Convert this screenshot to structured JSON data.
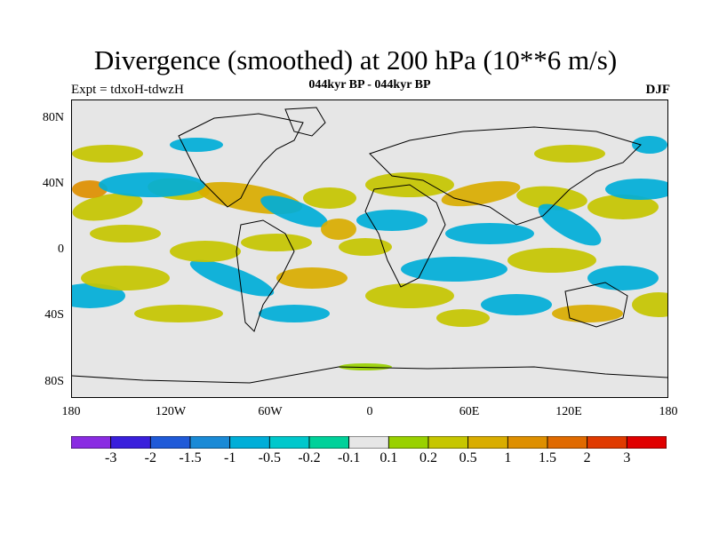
{
  "title": "Divergence (smoothed) at 200 hPa (10**6 m/s)",
  "subtitle": "044kyr BP - 044kyr BP",
  "experiment": "Expt = tdxoH-tdwzH",
  "season": "DJF",
  "latitude_ticks": [
    "80N",
    "40N",
    "0",
    "40S",
    "80S"
  ],
  "longitude_ticks": [
    "180",
    "120W",
    "60W",
    "0",
    "60E",
    "120E",
    "180"
  ],
  "colorbar": {
    "labels": [
      "-3",
      "-2",
      "-1.5",
      "-1",
      "-0.5",
      "-0.2",
      "-0.1",
      "0.1",
      "0.2",
      "0.5",
      "1",
      "1.5",
      "2",
      "3"
    ],
    "colors": [
      "#8a2be2",
      "#3a1fdc",
      "#1f5ad8",
      "#1a8ad6",
      "#00aed8",
      "#00c8cc",
      "#00d19a",
      "#e6e6e6",
      "#99d100",
      "#c6c600",
      "#d9ad00",
      "#de8f00",
      "#e06a00",
      "#e03a00",
      "#e00000"
    ]
  },
  "colors": {
    "land_outline": "#000000",
    "neutral_fill": "#e6e6e6"
  }
}
